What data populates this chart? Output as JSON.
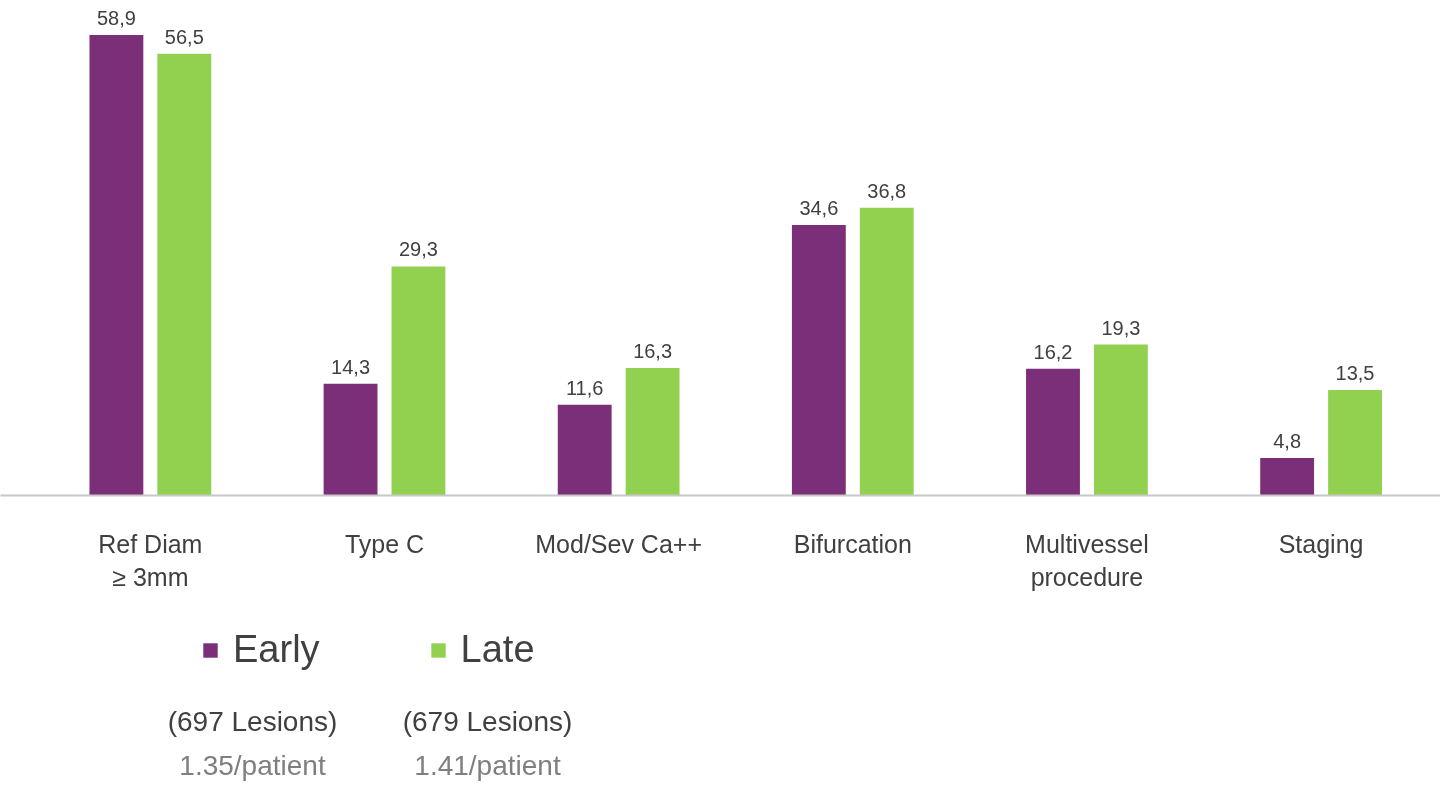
{
  "chart_data": {
    "type": "bar",
    "categories": [
      "Ref Diam\n≥ 3mm",
      "Type C",
      "Mod/Sev Ca++",
      "Bifurcation",
      "Multivessel\nprocedure",
      "Staging"
    ],
    "series": [
      {
        "name": "Early",
        "color": "#7b2f78",
        "values": [
          58.9,
          14.3,
          11.6,
          34.6,
          16.2,
          4.8
        ],
        "value_labels": [
          "58,9",
          "14,3",
          "11,6",
          "34,6",
          "16,2",
          "4,8"
        ]
      },
      {
        "name": "Late",
        "color": "#92d050",
        "values": [
          56.5,
          29.3,
          16.3,
          36.8,
          19.3,
          13.5
        ],
        "value_labels": [
          "56,5",
          "29,3",
          "16,3",
          "36,8",
          "19,3",
          "13,5"
        ]
      }
    ],
    "legend": "bottom",
    "annotations": [
      "(697 Lesions)",
      "1.35/patient",
      "(679 Lesions)",
      "1.41/patient"
    ]
  }
}
